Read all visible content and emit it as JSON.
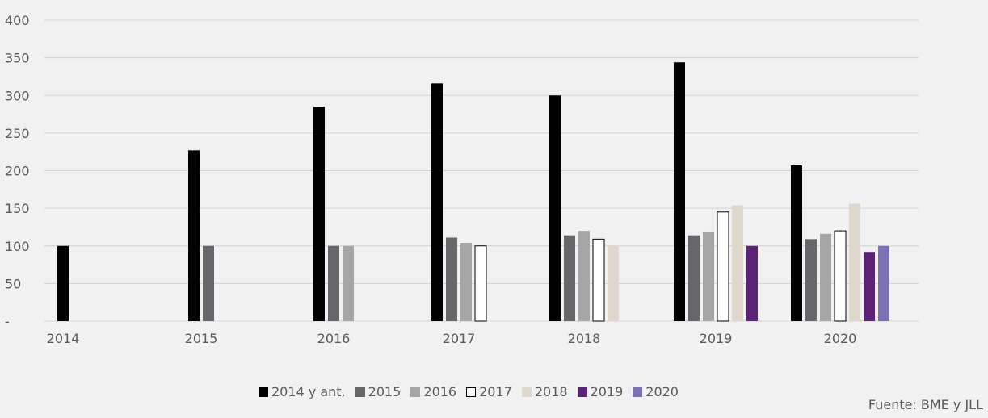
{
  "chart_data": {
    "type": "bar",
    "categories": [
      "2014",
      "2015",
      "2016",
      "2017",
      "2018",
      "2019",
      "2020"
    ],
    "y_ticks": [
      "-",
      "50",
      "100",
      "150",
      "200",
      "250",
      "300",
      "350",
      "400"
    ],
    "ylim": [
      0,
      400
    ],
    "grid": true,
    "legend_position": "bottom",
    "series": [
      {
        "name": "2014 y ant.",
        "color": "#000000",
        "values": [
          100,
          227,
          285,
          316,
          300,
          344,
          207
        ]
      },
      {
        "name": "2015",
        "color": "#66666b",
        "values": [
          null,
          100,
          100,
          111,
          114,
          114,
          109
        ]
      },
      {
        "name": "2016",
        "color": "#a6a6a6",
        "values": [
          null,
          null,
          100,
          104,
          120,
          118,
          116
        ]
      },
      {
        "name": "2017",
        "color": "#ffffff",
        "values": [
          null,
          null,
          null,
          100,
          109,
          145,
          120
        ]
      },
      {
        "name": "2018",
        "color": "#ded7cc",
        "values": [
          null,
          null,
          null,
          null,
          100,
          154,
          156
        ]
      },
      {
        "name": "2019",
        "color": "#5b2277",
        "values": [
          null,
          null,
          null,
          null,
          null,
          100,
          92
        ]
      },
      {
        "name": "2020",
        "color": "#7b72b6",
        "values": [
          null,
          null,
          null,
          null,
          null,
          null,
          100
        ]
      }
    ]
  },
  "source": "Fuente: BME y JLL"
}
